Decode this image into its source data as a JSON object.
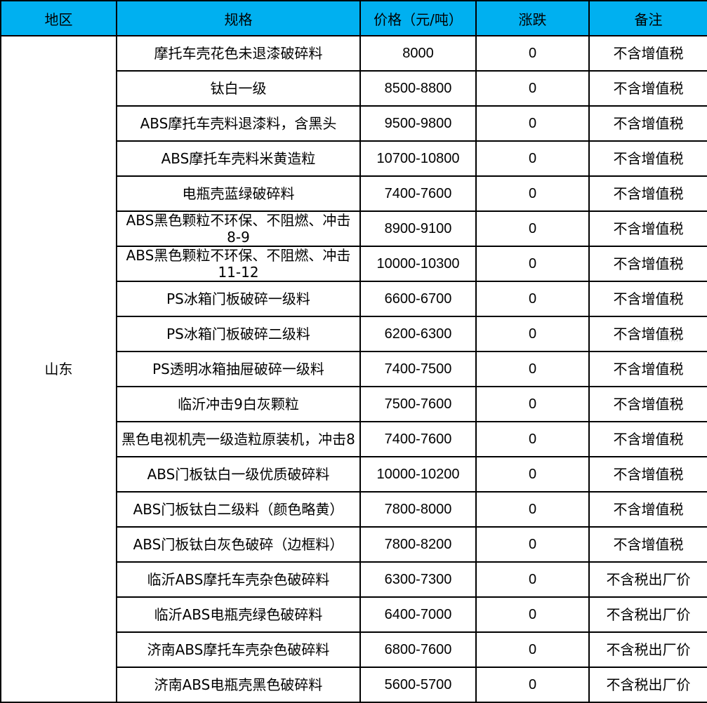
{
  "colors": {
    "header_bg": "#00b0f0",
    "border": "#000000",
    "body_bg": "#ffffff",
    "text": "#000000"
  },
  "chart_data": {
    "type": "table",
    "columns": [
      "地区",
      "规格",
      "价格（元/吨）",
      "涨跌",
      "备注"
    ],
    "region": "山东",
    "region_rowspan": 19,
    "rows": [
      {
        "spec": "摩托车壳花色未退漆破碎料",
        "price": "8000",
        "change": "0",
        "note": "不含增值税"
      },
      {
        "spec": "钛白一级",
        "price": "8500-8800",
        "change": "0",
        "note": "不含增值税"
      },
      {
        "spec": "ABS摩托车壳料退漆料，含黑头",
        "price": "9500-9800",
        "change": "0",
        "note": "不含增值税"
      },
      {
        "spec": "ABS摩托车壳料米黄造粒",
        "price": "10700-10800",
        "change": "0",
        "note": "不含增值税"
      },
      {
        "spec": "电瓶壳蓝绿破碎料",
        "price": "7400-7600",
        "change": "0",
        "note": "不含增值税"
      },
      {
        "spec": "ABS黑色颗粒不环保、不阻燃、冲击8-9",
        "price": "8900-9100",
        "change": "0",
        "note": "不含增值税"
      },
      {
        "spec": "ABS黑色颗粒不环保、不阻燃、冲击11-12",
        "price": "10000-10300",
        "change": "0",
        "note": "不含增值税"
      },
      {
        "spec": "PS冰箱门板破碎一级料",
        "price": "6600-6700",
        "change": "0",
        "note": "不含增值税"
      },
      {
        "spec": "PS冰箱门板破碎二级料",
        "price": "6200-6300",
        "change": "0",
        "note": "不含增值税"
      },
      {
        "spec": "PS透明冰箱抽屉破碎一级料",
        "price": "7400-7500",
        "change": "0",
        "note": "不含增值税"
      },
      {
        "spec": "临沂冲击9白灰颗粒",
        "price": "7500-7600",
        "change": "0",
        "note": "不含增值税"
      },
      {
        "spec": "黑色电视机壳一级造粒原装机，冲击8",
        "price": "7400-7600",
        "change": "0",
        "note": "不含增值税"
      },
      {
        "spec": "ABS门板钛白一级优质破碎料",
        "price": "10000-10200",
        "change": "0",
        "note": "不含增值税"
      },
      {
        "spec": "ABS门板钛白二级料（颜色略黄）",
        "price": "7800-8000",
        "change": "0",
        "note": "不含增值税"
      },
      {
        "spec": "ABS门板钛白灰色破碎（边框料）",
        "price": "7800-8200",
        "change": "0",
        "note": "不含增值税"
      },
      {
        "spec": "临沂ABS摩托车壳杂色破碎料",
        "price": "6300-7300",
        "change": "0",
        "note": "不含税出厂价"
      },
      {
        "spec": "临沂ABS电瓶壳绿色破碎料",
        "price": "6400-7000",
        "change": "0",
        "note": "不含税出厂价"
      },
      {
        "spec": "济南ABS摩托车壳杂色破碎料",
        "price": "6800-7600",
        "change": "0",
        "note": "不含税出厂价"
      },
      {
        "spec": "济南ABS电瓶壳黑色破碎料",
        "price": "5600-5700",
        "change": "0",
        "note": "不含税出厂价"
      }
    ]
  },
  "artifact": {
    "text": "·········"
  }
}
